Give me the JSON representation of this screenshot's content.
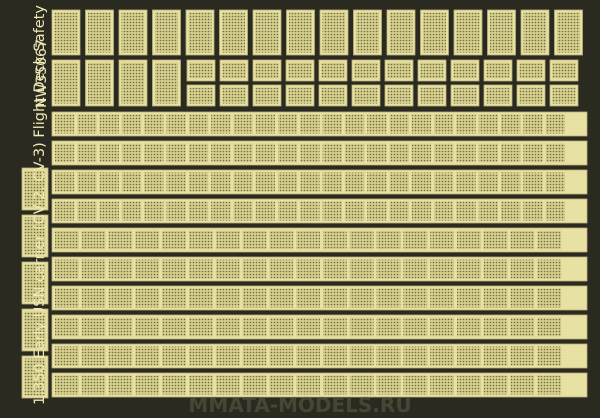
{
  "product": {
    "title": "1:350 Early USN carrier (CV-2, CV-3) Flight Deck Safety Net",
    "code": "NW35067"
  },
  "watermark": "MMATA-MODELS.RU"
}
